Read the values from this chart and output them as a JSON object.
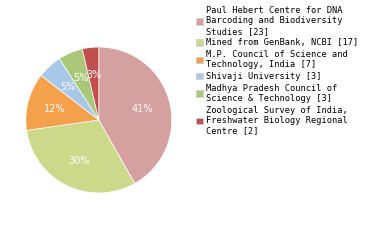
{
  "labels": [
    "Paul Hebert Centre for DNA\nBarcoding and Biodiversity\nStudies [23]",
    "Mined from GenBank, NCBI [17]",
    "M.P. Council of Science and\nTechnology, India [7]",
    "Shivaji University [3]",
    "Madhya Pradesh Council of\nScience & Technology [3]",
    "Zoological Survey of India,\nFreshwater Biology Regional\nCentre [2]"
  ],
  "values": [
    23,
    17,
    7,
    3,
    3,
    2
  ],
  "colors": [
    "#d4a0a0",
    "#ccd98a",
    "#f5a04a",
    "#a8c8e8",
    "#aac87a",
    "#c0504d"
  ],
  "pct_labels": [
    "41%",
    "30%",
    "12%",
    "5%",
    "5%",
    "3%"
  ],
  "startangle": 90,
  "figsize": [
    3.8,
    2.4
  ],
  "dpi": 100,
  "text_color": "white",
  "pct_fontsize": 7.0,
  "legend_fontsize": 6.2
}
